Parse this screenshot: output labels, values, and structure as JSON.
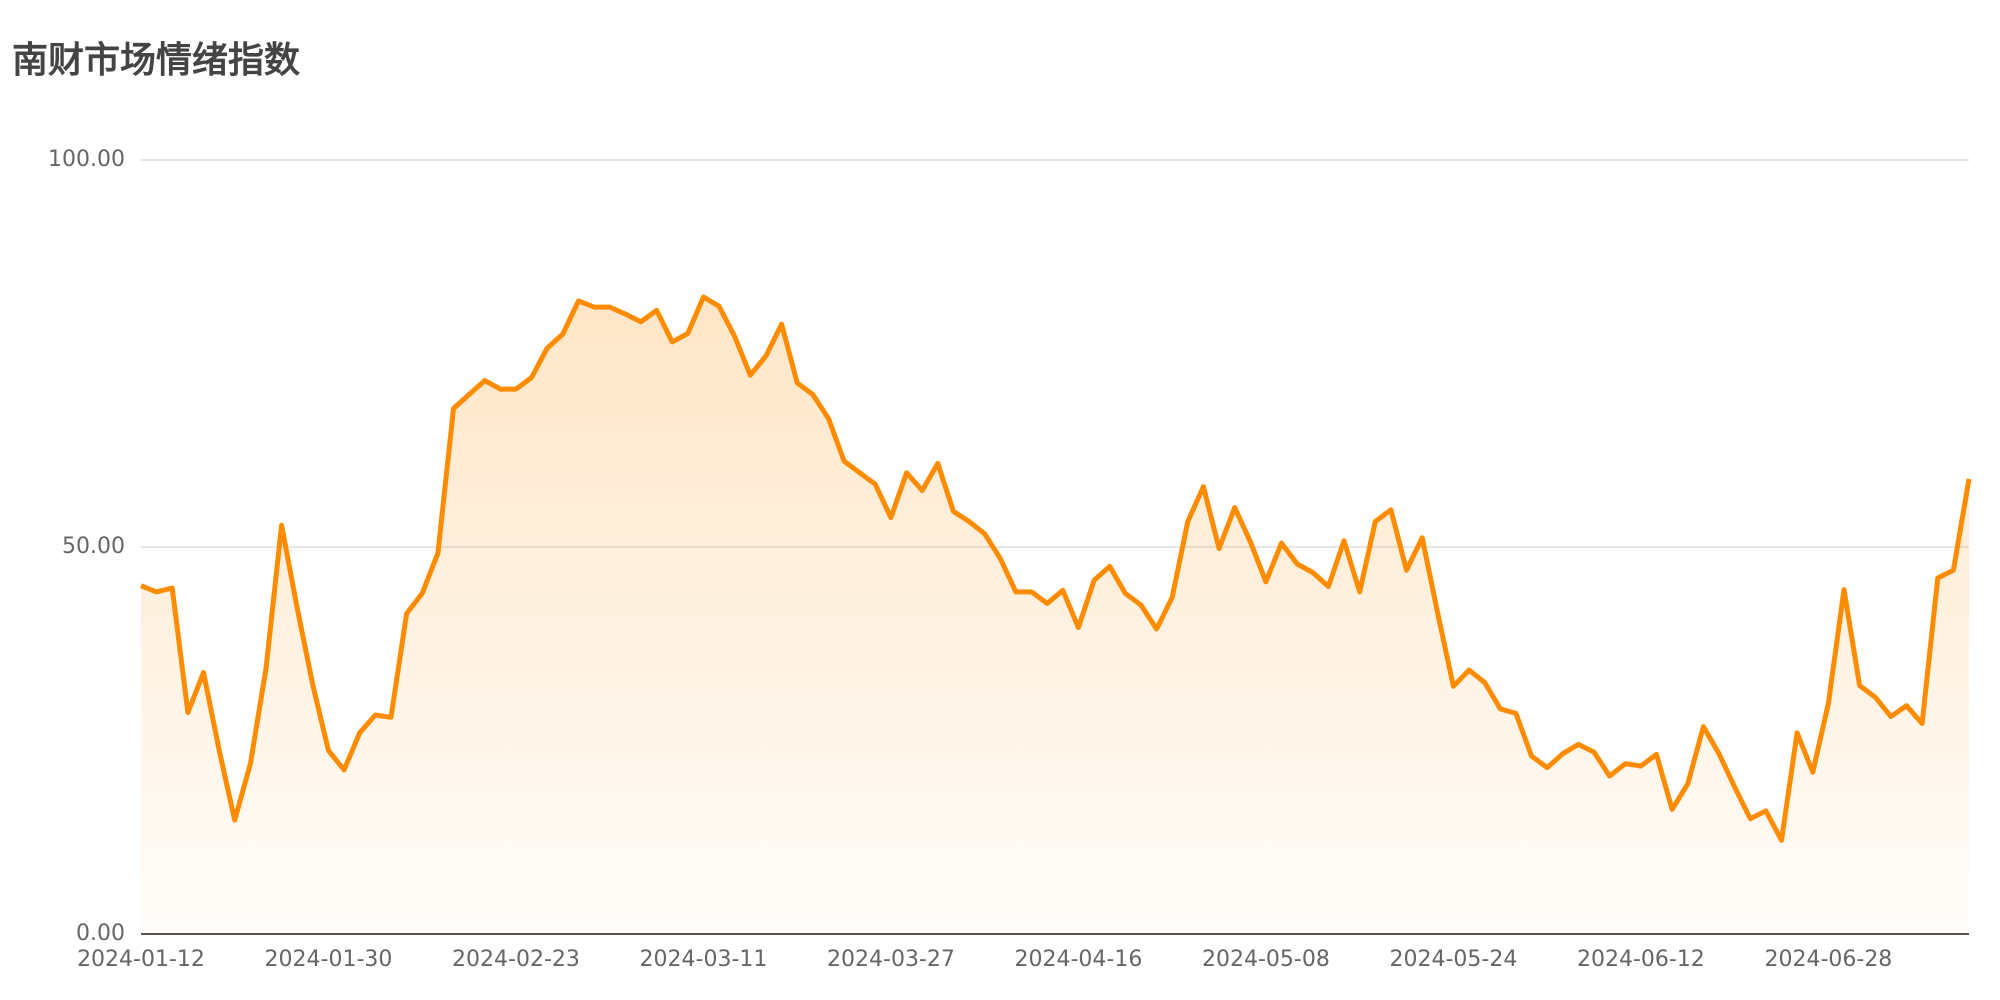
{
  "chart_data": {
    "type": "area",
    "title": "南财市场情绪指数",
    "categories": [
      "2024-01-12",
      null,
      null,
      null,
      null,
      null,
      null,
      null,
      null,
      null,
      null,
      null,
      "2024-01-30",
      null,
      null,
      null,
      null,
      null,
      null,
      null,
      null,
      null,
      null,
      null,
      "2024-02-23",
      null,
      null,
      null,
      null,
      null,
      null,
      null,
      null,
      null,
      null,
      null,
      "2024-03-11",
      null,
      null,
      null,
      null,
      null,
      null,
      null,
      null,
      null,
      null,
      null,
      "2024-03-27",
      null,
      null,
      null,
      null,
      null,
      null,
      null,
      null,
      null,
      null,
      null,
      "2024-04-16",
      null,
      null,
      null,
      null,
      null,
      null,
      null,
      null,
      null,
      null,
      null,
      "2024-05-08",
      null,
      null,
      null,
      null,
      null,
      null,
      null,
      null,
      null,
      null,
      null,
      "2024-05-24",
      null,
      null,
      null,
      null,
      null,
      null,
      null,
      null,
      null,
      null,
      null,
      "2024-06-12",
      null,
      null,
      null,
      null,
      null,
      null,
      null,
      null,
      null,
      null,
      null,
      "2024-06-28",
      null,
      null,
      null,
      null,
      null,
      null,
      null,
      null,
      null
    ],
    "values": [
      45.0,
      44.2,
      44.7,
      28.6,
      33.8,
      23.8,
      14.7,
      22.0,
      34.3,
      52.8,
      42.1,
      32.1,
      23.7,
      21.2,
      26.0,
      28.3,
      28.0,
      41.4,
      44.0,
      49.2,
      67.9,
      69.7,
      71.5,
      70.4,
      70.4,
      71.9,
      75.7,
      77.5,
      81.8,
      81.0,
      81.0,
      80.1,
      79.1,
      80.6,
      76.5,
      77.6,
      82.3,
      81.1,
      77.2,
      72.2,
      74.7,
      78.8,
      71.2,
      69.7,
      66.6,
      61.1,
      59.6,
      58.1,
      53.8,
      59.6,
      57.3,
      60.8,
      54.6,
      53.3,
      51.7,
      48.5,
      44.2,
      44.2,
      42.7,
      44.4,
      39.6,
      45.7,
      47.5,
      44.0,
      42.5,
      39.4,
      43.5,
      53.3,
      57.8,
      49.8,
      55.1,
      50.7,
      45.5,
      50.5,
      47.8,
      46.7,
      44.9,
      50.8,
      44.2,
      53.3,
      54.8,
      47.0,
      51.2,
      41.4,
      32.0,
      34.1,
      32.5,
      29.1,
      28.5,
      23.0,
      21.5,
      23.3,
      24.5,
      23.5,
      20.4,
      22.0,
      21.7,
      23.2,
      16.1,
      19.4,
      26.8,
      23.3,
      19.0,
      14.9,
      15.9,
      12.1,
      26.0,
      20.9,
      29.8,
      44.5,
      32.1,
      30.6,
      28.1,
      29.5,
      27.2,
      46.0,
      47.0,
      58.8
    ],
    "color": "#ff8c00",
    "ylim": [
      0,
      100
    ],
    "yticks": [
      {
        "value": 0,
        "label": "0.00"
      },
      {
        "value": 50,
        "label": "50.00"
      },
      {
        "value": 100,
        "label": "100.00"
      }
    ],
    "grid": true
  }
}
